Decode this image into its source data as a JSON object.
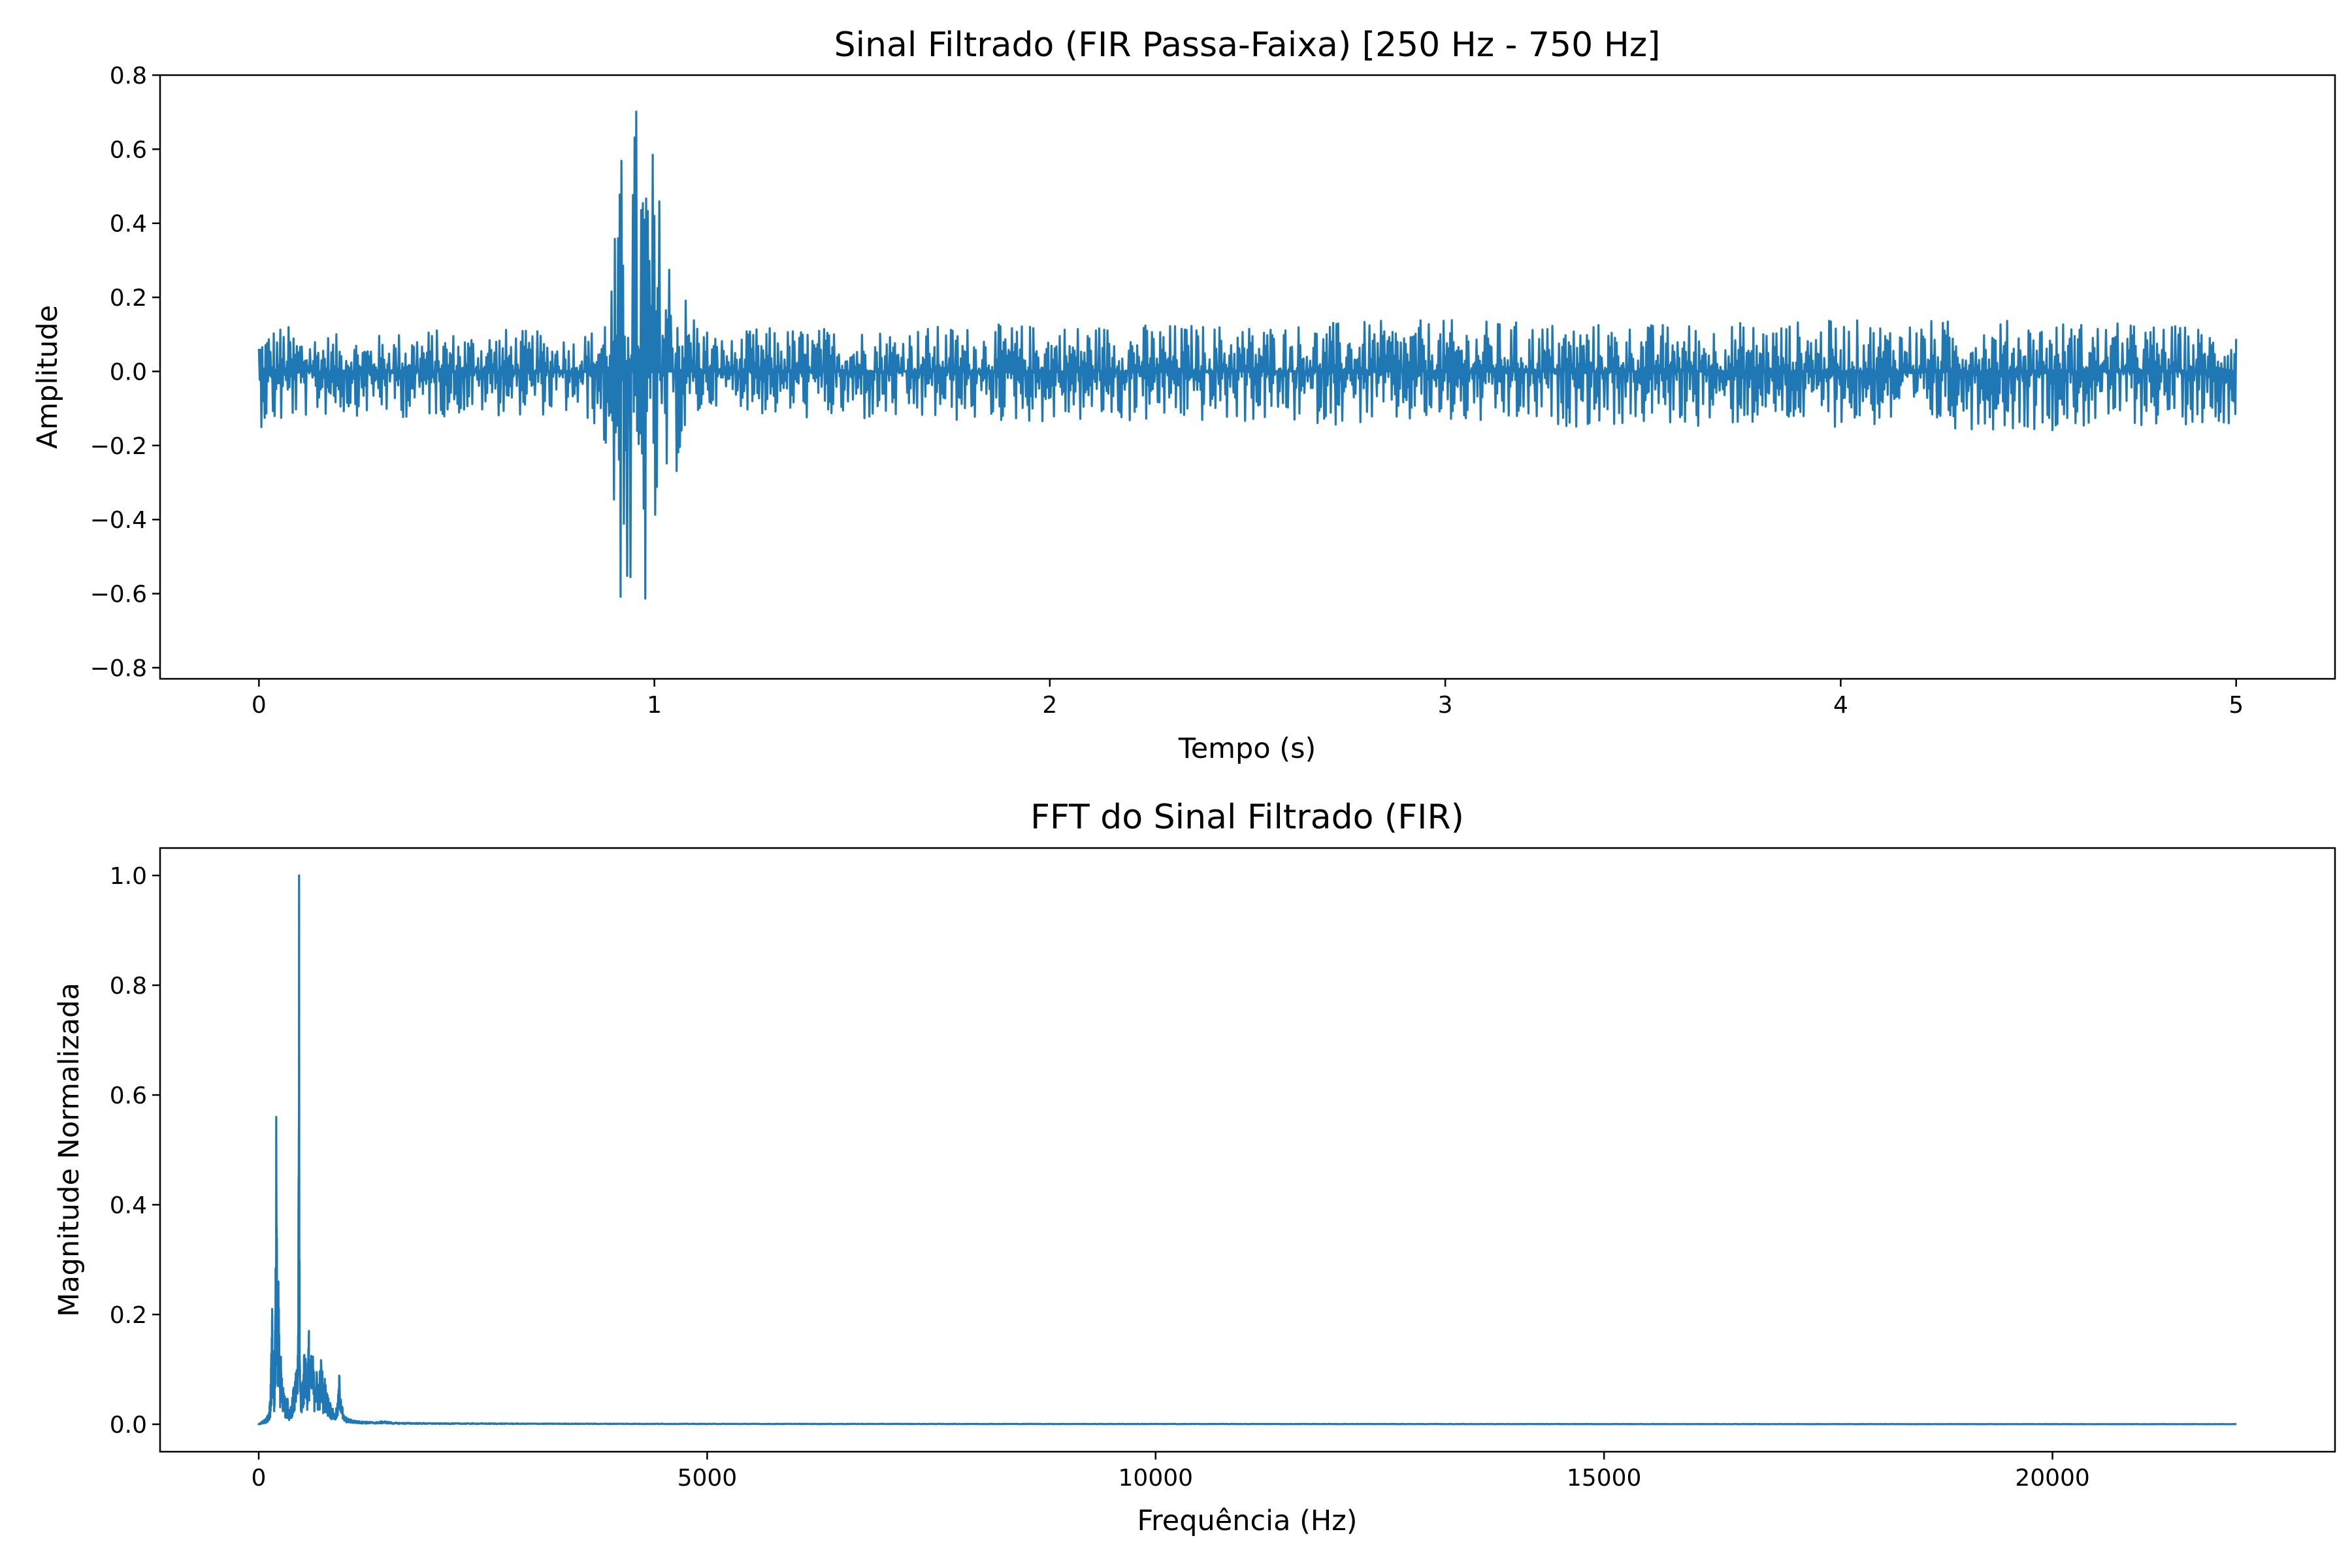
{
  "figure": {
    "background": "#ffffff"
  },
  "chart_data": [
    {
      "type": "line",
      "title": "Sinal Filtrado (FIR Passa-Faixa) [250 Hz - 750 Hz]",
      "xlabel": "Tempo (s)",
      "ylabel": "Amplitude",
      "xlim": [
        -0.25,
        5.25
      ],
      "ylim": [
        -0.83,
        0.8
      ],
      "xticks": [
        0,
        1,
        2,
        3,
        4,
        5
      ],
      "xtick_labels": [
        "0",
        "1",
        "2",
        "3",
        "4",
        "5"
      ],
      "yticks": [
        -0.8,
        -0.6,
        -0.4,
        -0.2,
        0.0,
        0.2,
        0.4,
        0.6,
        0.8
      ],
      "ytick_labels": [
        "−0.8",
        "−0.6",
        "−0.4",
        "−0.2",
        "0.0",
        "0.2",
        "0.4",
        "0.6",
        "0.8"
      ],
      "grid": false,
      "line_color": "#1f77b4",
      "series": [
        {
          "x": [
            0,
            0.05,
            0.1,
            0.2,
            0.3,
            0.4,
            0.5,
            0.6,
            0.7,
            0.8,
            0.85,
            0.88,
            0.9,
            0.92,
            0.94,
            0.96,
            0.98,
            1.0,
            1.02,
            1.05,
            1.08,
            1.12,
            1.16,
            1.2,
            1.25,
            1.5,
            2.0,
            2.5,
            3.0,
            3.5,
            4.0,
            4.5,
            5.0
          ],
          "y": [
            0.12,
            0.13,
            0.12,
            0.1,
            0.1,
            0.12,
            0.11,
            0.12,
            0.11,
            0.1,
            0.12,
            0.2,
            0.38,
            0.65,
            0.75,
            0.75,
            0.72,
            0.6,
            0.45,
            0.3,
            0.22,
            0.14,
            0.1,
            0.09,
            0.12,
            0.12,
            0.13,
            0.13,
            0.14,
            0.13,
            0.14,
            0.14,
            0.12
          ],
          "y_min": [
            -0.15,
            -0.16,
            -0.13,
            -0.12,
            -0.12,
            -0.13,
            -0.12,
            -0.12,
            -0.12,
            -0.12,
            -0.15,
            -0.25,
            -0.5,
            -0.7,
            -0.75,
            -0.76,
            -0.68,
            -0.55,
            -0.4,
            -0.3,
            -0.2,
            -0.12,
            -0.09,
            -0.08,
            -0.12,
            -0.14,
            -0.14,
            -0.14,
            -0.15,
            -0.15,
            -0.15,
            -0.16,
            -0.14
          ]
        }
      ]
    },
    {
      "type": "line",
      "title": "FFT do Sinal Filtrado (FIR)",
      "xlabel": "Frequência (Hz)",
      "ylabel": "Magnitude Normalizada",
      "xlim": [
        -1100,
        23150
      ],
      "ylim": [
        -0.05,
        1.05
      ],
      "xticks": [
        0,
        5000,
        10000,
        15000,
        20000
      ],
      "xtick_labels": [
        "0",
        "5000",
        "10000",
        "15000",
        "20000"
      ],
      "yticks": [
        0.0,
        0.2,
        0.4,
        0.6,
        0.8,
        1.0
      ],
      "ytick_labels": [
        "0.0",
        "0.2",
        "0.4",
        "0.6",
        "0.8",
        "1.0"
      ],
      "grid": false,
      "line_color": "#1f77b4",
      "series": [
        {
          "x": [
            0,
            40,
            80,
            110,
            130,
            150,
            170,
            185,
            195,
            210,
            220,
            235,
            250,
            265,
            280,
            300,
            320,
            340,
            360,
            380,
            400,
            420,
            435,
            445,
            450,
            455,
            460,
            470,
            480,
            500,
            520,
            540,
            560,
            580,
            600,
            620,
            640,
            660,
            680,
            700,
            720,
            740,
            760,
            780,
            800,
            820,
            850,
            880,
            900,
            920,
            940,
            960,
            1000,
            1050,
            1100,
            1200,
            1300,
            1400,
            1500,
            2000,
            3000,
            5000,
            10000,
            15000,
            22050
          ],
          "y": [
            0.0,
            0.005,
            0.01,
            0.02,
            0.05,
            0.21,
            0.07,
            0.2,
            0.56,
            0.15,
            0.26,
            0.1,
            0.13,
            0.06,
            0.08,
            0.04,
            0.05,
            0.03,
            0.04,
            0.06,
            0.08,
            0.1,
            0.12,
            0.45,
            1.0,
            0.3,
            0.1,
            0.08,
            0.07,
            0.12,
            0.15,
            0.1,
            0.17,
            0.12,
            0.14,
            0.09,
            0.11,
            0.08,
            0.1,
            0.13,
            0.07,
            0.09,
            0.06,
            0.05,
            0.04,
            0.03,
            0.02,
            0.04,
            0.1,
            0.06,
            0.02,
            0.015,
            0.01,
            0.008,
            0.006,
            0.005,
            0.004,
            0.006,
            0.003,
            0.002,
            0.0015,
            0.001,
            0.0008,
            0.0005,
            0.0003
          ]
        }
      ]
    }
  ]
}
